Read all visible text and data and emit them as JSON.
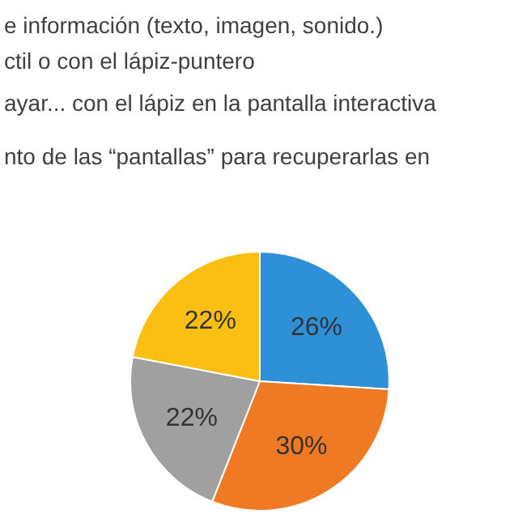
{
  "chart_data": {
    "type": "pie",
    "annotations": [
      "e información (texto, imagen, sonido.)",
      "ctil o con el lápiz-puntero",
      "ayar... con el lápiz en la pantalla interactiva",
      "nto de las “pantallas” para recuperarlas en"
    ],
    "categories": [
      null,
      null,
      null,
      null
    ],
    "values": [
      26,
      30,
      22,
      22
    ],
    "colors": [
      "#2e90d6",
      "#f07a24",
      "#a0a0a0",
      "#fbbf14"
    ],
    "value_labels": [
      "26%",
      "30%",
      "22%",
      "22%"
    ]
  }
}
